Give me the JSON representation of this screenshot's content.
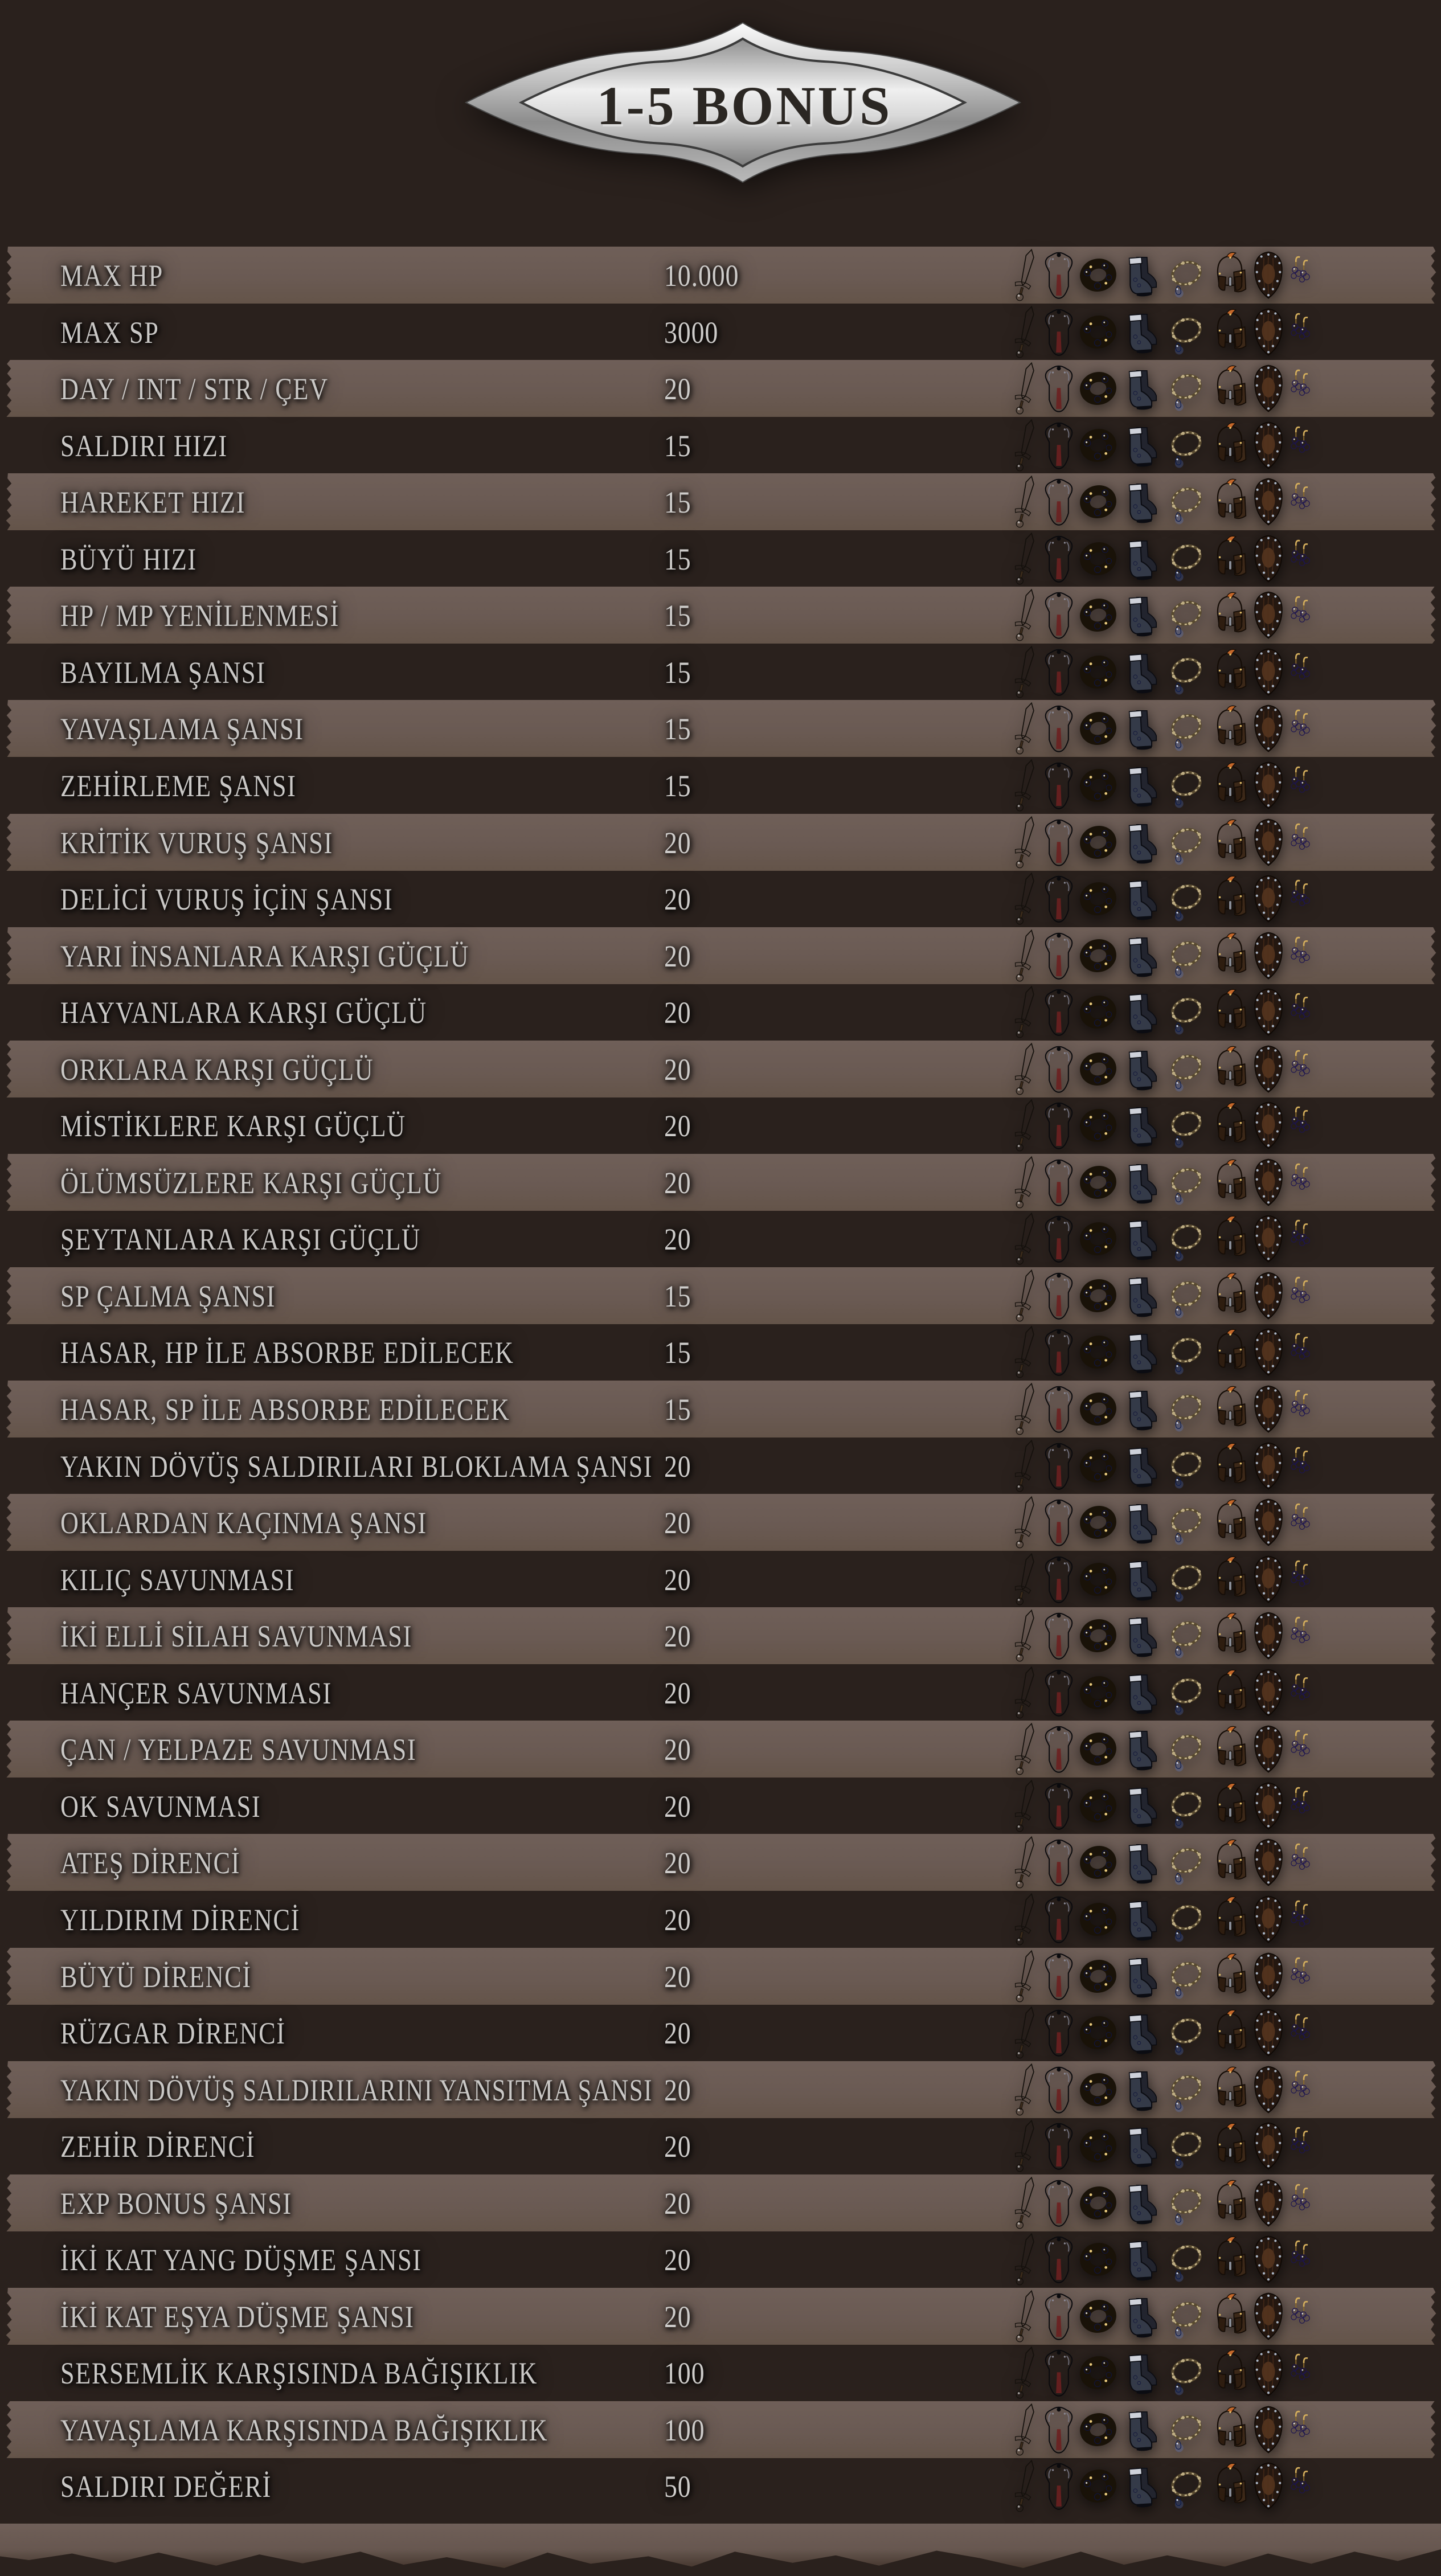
{
  "banner": {
    "title": "1-5 BONUS"
  },
  "colors": {
    "background": "#2a211d",
    "row_band": "#6a5a53",
    "row_text": "#c9c7c5",
    "banner_metal": "#c6c6c6",
    "banner_text": "#2b2723"
  },
  "icons": [
    "sword-icon",
    "armor-icon",
    "bracelet-icon",
    "boots-icon",
    "necklace-icon",
    "helmet-icon",
    "shield-icon",
    "earrings-icon"
  ],
  "rows": [
    {
      "label": "MAX HP",
      "value": "10.000"
    },
    {
      "label": "MAX SP",
      "value": "3000"
    },
    {
      "label": "DAY / INT / STR / ÇEV",
      "value": "20"
    },
    {
      "label": "SALDIRI HIZI",
      "value": "15"
    },
    {
      "label": "HAREKET HIZI",
      "value": "15"
    },
    {
      "label": "BÜYÜ HIZI",
      "value": "15"
    },
    {
      "label": "HP / MP YENİLENMESİ",
      "value": "15"
    },
    {
      "label": "BAYILMA ŞANSI",
      "value": "15"
    },
    {
      "label": "YAVAŞLAMA ŞANSI",
      "value": "15"
    },
    {
      "label": "ZEHİRLEME ŞANSI",
      "value": "15"
    },
    {
      "label": "KRİTİK VURUŞ ŞANSI",
      "value": "20"
    },
    {
      "label": "DELİCİ VURUŞ İÇİN ŞANSI",
      "value": "20"
    },
    {
      "label": "YARI İNSANLARA KARŞI GÜÇLÜ",
      "value": "20"
    },
    {
      "label": "HAYVANLARA KARŞI GÜÇLÜ",
      "value": "20"
    },
    {
      "label": "ORKLARA KARŞI GÜÇLÜ",
      "value": "20"
    },
    {
      "label": "MİSTİKLERE KARŞI GÜÇLÜ",
      "value": "20"
    },
    {
      "label": "ÖLÜMSÜZLERE KARŞI GÜÇLÜ",
      "value": "20"
    },
    {
      "label": "ŞEYTANLARA KARŞI GÜÇLÜ",
      "value": "20"
    },
    {
      "label": "SP ÇALMA ŞANSI",
      "value": "15"
    },
    {
      "label": "HASAR, HP İLE ABSORBE EDİLECEK",
      "value": "15"
    },
    {
      "label": "HASAR, SP İLE ABSORBE EDİLECEK",
      "value": "15"
    },
    {
      "label": "YAKIN DÖVÜŞ SALDIRILARI BLOKLAMA ŞANSI",
      "value": "20"
    },
    {
      "label": "OKLARDAN KAÇINMA ŞANSI",
      "value": "20"
    },
    {
      "label": "KILIÇ SAVUNMASI",
      "value": "20"
    },
    {
      "label": "İKİ ELLİ SİLAH SAVUNMASI",
      "value": "20"
    },
    {
      "label": "HANÇER SAVUNMASI",
      "value": "20"
    },
    {
      "label": "ÇAN / YELPAZE SAVUNMASI",
      "value": "20"
    },
    {
      "label": "OK SAVUNMASI",
      "value": "20"
    },
    {
      "label": "ATEŞ DİRENCİ",
      "value": "20"
    },
    {
      "label": "YILDIRIM DİRENCİ",
      "value": "20"
    },
    {
      "label": "BÜYÜ DİRENCİ",
      "value": "20"
    },
    {
      "label": "RÜZGAR DİRENCİ",
      "value": "20"
    },
    {
      "label": "YAKIN DÖVÜŞ SALDIRILARINI YANSITMA ŞANSI",
      "value": "20"
    },
    {
      "label": "ZEHİR DİRENCİ",
      "value": "20"
    },
    {
      "label": "EXP BONUS ŞANSI",
      "value": "20"
    },
    {
      "label": "İKİ KAT YANG DÜŞME ŞANSI",
      "value": "20"
    },
    {
      "label": "İKİ KAT EŞYA DÜŞME ŞANSI",
      "value": "20"
    },
    {
      "label": "SERSEMLİK KARŞISINDA BAĞIŞIKLIK",
      "value": "100"
    },
    {
      "label": "YAVAŞLAMA KARŞISINDA BAĞIŞIKLIK",
      "value": "100"
    },
    {
      "label": "SALDIRI DEĞERİ",
      "value": "50"
    }
  ]
}
